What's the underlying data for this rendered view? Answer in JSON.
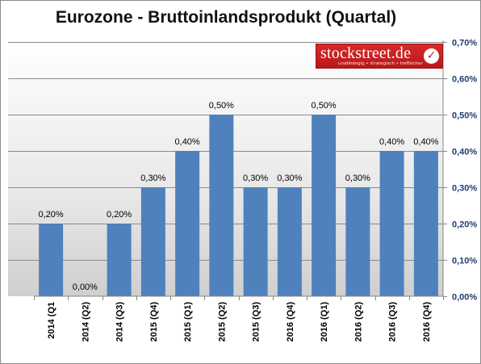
{
  "title": "Eurozone - Bruttoinlandsprodukt (Quartal)",
  "logo": {
    "name": "stockstreet.de",
    "tagline": "unabhängig • strategisch • treffsicher",
    "icon": "checkmark-icon"
  },
  "colors": {
    "bar": "#4f81bd",
    "axis_label": "#1f3f70"
  },
  "chart_data": {
    "type": "bar",
    "title": "Eurozone - Bruttoinlandsprodukt (Quartal)",
    "categories": [
      "2014 (Q1",
      "2014 (Q2)",
      "2014 (Q3)",
      "2015 (Q4)",
      "2015 (Q1)",
      "2015 (Q2)",
      "2015 (Q3)",
      "2016 (Q4)",
      "2016 (Q1)",
      "2016 (Q2)",
      "2016 (Q3)",
      "2016 (Q4)"
    ],
    "values": [
      0.2,
      0.0,
      0.2,
      0.3,
      0.4,
      0.5,
      0.3,
      0.3,
      0.5,
      0.3,
      0.4,
      0.4
    ],
    "data_labels": [
      "0,20%",
      "0,00%",
      "0,20%",
      "0,30%",
      "0,40%",
      "0,50%",
      "0,30%",
      "0,30%",
      "0,50%",
      "0,30%",
      "0,40%",
      "0,40%"
    ],
    "y_ticks": [
      0.0,
      0.1,
      0.2,
      0.3,
      0.4,
      0.5,
      0.6,
      0.7
    ],
    "y_tick_labels": [
      "0,00%",
      "0,10%",
      "0,20%",
      "0,30%",
      "0,40%",
      "0,50%",
      "0,60%",
      "0,70%"
    ],
    "ylim": [
      0,
      0.7
    ],
    "y_axis_side": "right",
    "grid": true,
    "xlabel": "",
    "ylabel": ""
  }
}
